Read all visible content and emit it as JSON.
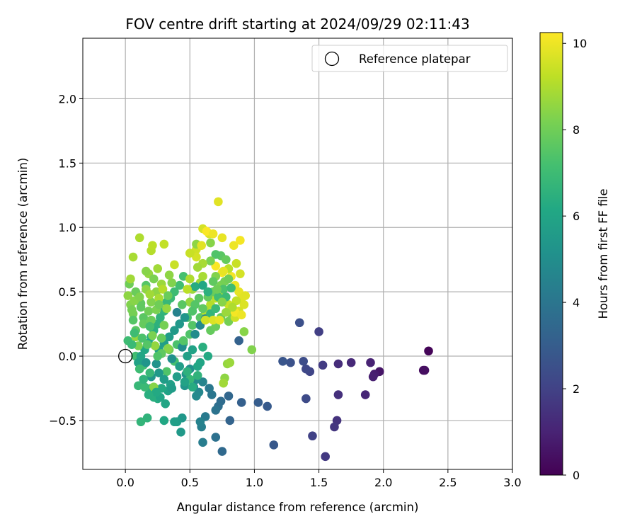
{
  "chart_data": {
    "type": "scatter",
    "title": "FOV centre drift starting at 2024/09/29 02:11:43",
    "xlabel": "Angular distance from reference (arcmin)",
    "ylabel": "Rotation from reference (arcmin)",
    "xlim": [
      -0.33,
      3.0
    ],
    "ylim": [
      -0.88,
      2.47
    ],
    "xticks": [
      0.0,
      0.5,
      1.0,
      1.5,
      2.0,
      2.5,
      3.0
    ],
    "xtick_labels": [
      "0.0",
      "0.5",
      "1.0",
      "1.5",
      "2.0",
      "2.5",
      "3.0"
    ],
    "yticks": [
      -0.5,
      0.0,
      0.5,
      1.0,
      1.5,
      2.0
    ],
    "ytick_labels": [
      "−0.5",
      "0.0",
      "0.5",
      "1.0",
      "1.5",
      "2.0"
    ],
    "grid": true,
    "legend": {
      "position": "upper right",
      "entries": [
        "Reference platepar"
      ]
    },
    "reference_point": {
      "label": "Reference platepar",
      "x": 0.0,
      "y": 0.0
    },
    "colorbar": {
      "label": "Hours from first FF file",
      "range": [
        0,
        10.25
      ],
      "ticks": [
        0,
        2,
        4,
        6,
        8,
        10
      ],
      "tick_labels": [
        "0",
        "2",
        "4",
        "6",
        "8",
        "10"
      ],
      "colormap": "viridis"
    },
    "points": [
      [
        2.35,
        0.04,
        0.1
      ],
      [
        2.31,
        -0.11,
        0.3
      ],
      [
        2.32,
        -0.11,
        0.4
      ],
      [
        1.97,
        -0.12,
        0.6
      ],
      [
        1.93,
        -0.14,
        0.8
      ],
      [
        1.92,
        -0.16,
        0.9
      ],
      [
        1.9,
        -0.05,
        1.0
      ],
      [
        1.86,
        -0.3,
        1.1
      ],
      [
        1.75,
        -0.05,
        1.2
      ],
      [
        1.65,
        -0.06,
        1.3
      ],
      [
        1.65,
        -0.3,
        1.4
      ],
      [
        1.64,
        -0.5,
        1.5
      ],
      [
        1.62,
        -0.55,
        1.6
      ],
      [
        1.55,
        -0.78,
        1.7
      ],
      [
        1.53,
        -0.07,
        1.8
      ],
      [
        1.5,
        0.19,
        1.9
      ],
      [
        1.45,
        -0.62,
        2.0
      ],
      [
        1.43,
        -0.12,
        2.1
      ],
      [
        1.4,
        -0.1,
        2.2
      ],
      [
        1.4,
        -0.33,
        2.3
      ],
      [
        1.38,
        -0.04,
        2.4
      ],
      [
        1.35,
        0.26,
        2.5
      ],
      [
        1.28,
        -0.05,
        2.6
      ],
      [
        1.22,
        -0.04,
        2.7
      ],
      [
        1.15,
        -0.69,
        2.8
      ],
      [
        1.1,
        -0.39,
        2.9
      ],
      [
        1.03,
        -0.36,
        3.0
      ],
      [
        0.9,
        -0.36,
        3.1
      ],
      [
        0.88,
        0.12,
        3.2
      ],
      [
        0.81,
        -0.5,
        3.3
      ],
      [
        0.8,
        -0.31,
        3.4
      ],
      [
        0.75,
        -0.74,
        3.5
      ],
      [
        0.74,
        -0.35,
        3.6
      ],
      [
        0.72,
        -0.39,
        3.7
      ],
      [
        0.7,
        -0.63,
        3.8
      ],
      [
        0.7,
        -0.42,
        3.9
      ],
      [
        0.67,
        -0.3,
        4.0
      ],
      [
        0.65,
        -0.25,
        4.1
      ],
      [
        0.62,
        -0.47,
        4.2
      ],
      [
        0.6,
        -0.67,
        4.3
      ],
      [
        0.59,
        -0.55,
        4.4
      ],
      [
        0.58,
        -0.51,
        4.5
      ],
      [
        0.6,
        -0.2,
        4.6
      ],
      [
        0.57,
        -0.28,
        4.7
      ],
      [
        0.55,
        -0.31,
        4.8
      ],
      [
        0.55,
        -0.18,
        4.9
      ],
      [
        0.53,
        -0.24,
        5.0
      ],
      [
        0.5,
        -0.1,
        5.1
      ],
      [
        0.47,
        -0.14,
        5.2
      ],
      [
        0.46,
        -0.23,
        5.3
      ],
      [
        0.44,
        -0.48,
        5.4
      ],
      [
        0.43,
        -0.59,
        5.5
      ],
      [
        0.4,
        -0.51,
        5.6
      ],
      [
        0.38,
        -0.51,
        5.7
      ],
      [
        0.35,
        -0.22,
        5.8
      ],
      [
        0.33,
        -0.27,
        5.9
      ],
      [
        0.31,
        -0.37,
        6.0
      ],
      [
        0.3,
        -0.5,
        6.1
      ],
      [
        0.28,
        -0.25,
        6.2
      ],
      [
        0.25,
        -0.33,
        6.3
      ],
      [
        0.22,
        -0.32,
        6.4
      ],
      [
        0.2,
        -0.25,
        6.5
      ],
      [
        0.17,
        -0.48,
        6.6
      ],
      [
        0.12,
        -0.51,
        6.7
      ],
      [
        0.1,
        -0.23,
        6.8
      ],
      [
        0.15,
        -0.24,
        6.9
      ],
      [
        0.02,
        0.12,
        7.0
      ],
      [
        0.08,
        0.0,
        7.1
      ],
      [
        0.14,
        -0.07,
        7.2
      ],
      [
        0.4,
        0.09,
        7.3
      ],
      [
        0.5,
        0.17,
        7.4
      ],
      [
        0.52,
        0.24,
        7.5
      ],
      [
        0.58,
        0.3,
        7.6
      ],
      [
        0.62,
        0.33,
        7.7
      ],
      [
        0.66,
        0.2,
        7.8
      ],
      [
        0.7,
        0.23,
        7.9
      ],
      [
        0.74,
        0.3,
        8.0
      ],
      [
        0.8,
        0.27,
        8.1
      ],
      [
        0.82,
        0.33,
        8.2
      ],
      [
        0.98,
        0.05,
        8.3
      ],
      [
        0.92,
        0.19,
        8.4
      ],
      [
        0.77,
        -0.17,
        8.5
      ],
      [
        0.79,
        -0.06,
        8.6
      ],
      [
        0.81,
        -0.05,
        8.7
      ],
      [
        0.76,
        -0.21,
        8.8
      ],
      [
        0.06,
        0.77,
        8.9
      ],
      [
        0.11,
        0.92,
        9.0
      ],
      [
        0.2,
        0.82,
        9.1
      ],
      [
        0.21,
        0.86,
        9.2
      ],
      [
        0.3,
        0.87,
        9.3
      ],
      [
        0.38,
        0.71,
        9.4
      ],
      [
        0.55,
        0.83,
        9.5
      ],
      [
        0.6,
        0.99,
        9.6
      ],
      [
        0.65,
        0.95,
        9.7
      ],
      [
        0.72,
        1.2,
        9.8
      ],
      [
        0.75,
        0.92,
        9.9
      ],
      [
        0.84,
        0.86,
        10.0
      ],
      [
        0.89,
        0.9,
        10.1
      ],
      [
        0.7,
        0.7,
        10.2
      ],
      [
        0.75,
        0.65,
        10.2
      ],
      [
        0.82,
        0.62,
        10.1
      ],
      [
        0.85,
        0.55,
        10.0
      ],
      [
        0.88,
        0.5,
        9.9
      ],
      [
        0.9,
        0.45,
        9.8
      ],
      [
        0.92,
        0.4,
        9.7
      ],
      [
        0.88,
        0.35,
        9.6
      ],
      [
        0.85,
        0.3,
        9.5
      ],
      [
        0.8,
        0.4,
        9.4
      ],
      [
        0.75,
        0.47,
        9.3
      ],
      [
        0.7,
        0.45,
        9.2
      ],
      [
        0.66,
        0.4,
        9.1
      ],
      [
        0.62,
        0.35,
        9.0
      ],
      [
        0.6,
        0.62,
        8.9
      ],
      [
        0.58,
        0.57,
        8.8
      ],
      [
        0.52,
        0.52,
        8.7
      ],
      [
        0.5,
        0.42,
        8.6
      ],
      [
        0.55,
        0.87,
        8.5
      ],
      [
        0.66,
        0.88,
        8.4
      ],
      [
        0.7,
        0.62,
        8.3
      ],
      [
        0.74,
        0.55,
        8.2
      ],
      [
        0.77,
        0.58,
        8.1
      ],
      [
        0.8,
        0.6,
        8.0
      ],
      [
        0.68,
        0.5,
        7.9
      ],
      [
        0.64,
        0.46,
        7.8
      ],
      [
        0.6,
        0.37,
        7.7
      ],
      [
        0.57,
        0.45,
        7.6
      ],
      [
        0.54,
        0.4,
        7.5
      ],
      [
        0.52,
        0.35,
        7.4
      ],
      [
        0.48,
        0.3,
        7.3
      ],
      [
        0.45,
        0.62,
        7.2
      ],
      [
        0.42,
        0.55,
        7.1
      ],
      [
        0.38,
        0.5,
        7.0
      ],
      [
        0.35,
        0.45,
        6.9
      ],
      [
        0.32,
        0.42,
        6.8
      ],
      [
        0.3,
        0.35,
        6.7
      ],
      [
        0.27,
        0.3,
        6.6
      ],
      [
        0.25,
        0.25,
        6.5
      ],
      [
        0.22,
        0.2,
        6.4
      ],
      [
        0.2,
        0.15,
        6.3
      ],
      [
        0.18,
        0.1,
        6.2
      ],
      [
        0.15,
        0.05,
        6.1
      ],
      [
        0.12,
        0.0,
        6.0
      ],
      [
        0.1,
        -0.05,
        5.9
      ],
      [
        0.26,
        0.05,
        5.8
      ],
      [
        0.3,
        0.1,
        5.7
      ],
      [
        0.34,
        0.15,
        5.6
      ],
      [
        0.38,
        0.2,
        5.5
      ],
      [
        0.42,
        0.25,
        5.4
      ],
      [
        0.46,
        0.3,
        5.3
      ],
      [
        0.02,
        0.47,
        8.5
      ],
      [
        0.04,
        0.4,
        8.3
      ],
      [
        0.06,
        0.33,
        8.1
      ],
      [
        0.03,
        0.56,
        8.0
      ],
      [
        0.08,
        0.5,
        7.9
      ],
      [
        0.1,
        0.45,
        7.8
      ],
      [
        0.12,
        0.38,
        7.7
      ],
      [
        0.14,
        0.3,
        7.6
      ],
      [
        0.16,
        0.55,
        7.5
      ],
      [
        0.18,
        0.64,
        8.6
      ],
      [
        0.16,
        0.66,
        8.4
      ],
      [
        0.22,
        0.6,
        8.2
      ],
      [
        0.25,
        0.68,
        8.8
      ],
      [
        0.28,
        0.56,
        8.7
      ],
      [
        0.24,
        0.5,
        8.5
      ],
      [
        0.2,
        0.42,
        8.3
      ],
      [
        0.18,
        0.35,
        8.0
      ],
      [
        0.14,
        0.25,
        7.8
      ],
      [
        0.08,
        0.2,
        7.6
      ],
      [
        0.06,
        0.28,
        7.5
      ],
      [
        0.04,
        0.6,
        8.8
      ],
      [
        0.08,
        0.15,
        8.6
      ],
      [
        0.1,
        0.08,
        8.2
      ],
      [
        0.22,
        -0.24,
        8.4
      ],
      [
        0.34,
        0.05,
        8.0
      ],
      [
        0.32,
        -0.12,
        7.4
      ],
      [
        0.38,
        -0.04,
        7.2
      ],
      [
        0.45,
        0.1,
        7.0
      ],
      [
        0.5,
        -0.18,
        6.8
      ],
      [
        0.56,
        -0.15,
        6.6
      ],
      [
        0.6,
        0.07,
        6.4
      ],
      [
        0.64,
        0.0,
        6.2
      ],
      [
        0.58,
        -0.05,
        6.0
      ],
      [
        0.52,
        0.05,
        5.9
      ],
      [
        0.48,
        0.0,
        5.8
      ],
      [
        0.42,
        -0.08,
        5.7
      ],
      [
        0.3,
        -0.18,
        5.6
      ],
      [
        0.26,
        -0.13,
        5.5
      ],
      [
        0.2,
        -0.16,
        5.4
      ],
      [
        0.16,
        -0.05,
        5.3
      ],
      [
        0.24,
        -0.06,
        5.2
      ],
      [
        0.36,
        -0.02,
        5.1
      ],
      [
        0.44,
        0.07,
        5.0
      ],
      [
        0.54,
        0.17,
        4.9
      ],
      [
        0.58,
        0.24,
        4.8
      ],
      [
        0.62,
        0.29,
        4.7
      ],
      [
        0.4,
        0.34,
        4.5
      ],
      [
        0.54,
        0.54,
        6.3
      ],
      [
        0.6,
        0.55,
        6.1
      ],
      [
        0.64,
        0.5,
        6.5
      ],
      [
        0.66,
        0.33,
        6.7
      ],
      [
        0.7,
        0.37,
        6.9
      ],
      [
        0.72,
        0.46,
        7.1
      ],
      [
        0.76,
        0.52,
        7.3
      ],
      [
        0.78,
        0.46,
        6.9
      ],
      [
        0.82,
        0.53,
        7.0
      ],
      [
        0.74,
        0.78,
        7.6
      ],
      [
        0.7,
        0.79,
        7.4
      ],
      [
        0.78,
        0.75,
        7.8
      ],
      [
        0.66,
        0.74,
        8.2
      ],
      [
        0.6,
        0.72,
        8.9
      ],
      [
        0.62,
        0.28,
        9.5
      ],
      [
        0.68,
        0.28,
        9.7
      ],
      [
        0.73,
        0.28,
        9.9
      ],
      [
        0.85,
        0.34,
        10.1
      ],
      [
        0.9,
        0.32,
        10.0
      ],
      [
        0.93,
        0.47,
        9.8
      ],
      [
        0.89,
        0.64,
        9.6
      ],
      [
        0.86,
        0.72,
        9.4
      ],
      [
        0.8,
        0.68,
        9.2
      ],
      [
        0.76,
        0.66,
        9.9
      ],
      [
        0.63,
        0.97,
        10.2
      ],
      [
        0.68,
        0.95,
        10.0
      ],
      [
        0.59,
        0.86,
        9.8
      ],
      [
        0.55,
        0.77,
        9.6
      ],
      [
        0.5,
        0.8,
        9.4
      ],
      [
        0.48,
        0.52,
        9.2
      ],
      [
        0.5,
        0.6,
        9.0
      ],
      [
        0.56,
        0.69,
        8.8
      ],
      [
        0.26,
        0.45,
        8.9
      ],
      [
        0.29,
        0.52,
        9.1
      ],
      [
        0.32,
        0.37,
        8.6
      ],
      [
        0.24,
        0.36,
        8.2
      ],
      [
        0.2,
        0.28,
        7.9
      ],
      [
        0.12,
        0.41,
        7.7
      ],
      [
        0.07,
        0.43,
        8.4
      ],
      [
        0.05,
        0.36,
        8.1
      ],
      [
        0.11,
        0.46,
        8.3
      ],
      [
        0.16,
        0.52,
        8.5
      ],
      [
        0.19,
        0.48,
        8.8
      ],
      [
        0.26,
        0.4,
        8.0
      ],
      [
        0.28,
        0.14,
        7.8
      ],
      [
        0.3,
        0.24,
        8.1
      ],
      [
        0.33,
        0.06,
        8.4
      ],
      [
        0.23,
        0.08,
        8.6
      ],
      [
        0.21,
        0.16,
        8.2
      ],
      [
        0.17,
        0.09,
        7.5
      ],
      [
        0.13,
        0.14,
        7.3
      ],
      [
        0.05,
        0.09,
        6.9
      ],
      [
        0.07,
        0.18,
        7.0
      ],
      [
        0.48,
        -0.12,
        6.5
      ],
      [
        0.52,
        -0.24,
        6.3
      ],
      [
        0.56,
        -0.08,
        6.0
      ],
      [
        0.46,
        -0.2,
        5.9
      ],
      [
        0.4,
        -0.16,
        5.7
      ],
      [
        0.36,
        -0.25,
        5.6
      ],
      [
        0.27,
        -0.32,
        6.0
      ],
      [
        0.24,
        -0.28,
        6.2
      ],
      [
        0.18,
        -0.3,
        6.4
      ],
      [
        0.14,
        -0.18,
        6.6
      ],
      [
        0.19,
        -0.13,
        6.8
      ],
      [
        0.11,
        -0.1,
        7.0
      ],
      [
        0.19,
        0.23,
        7.2
      ],
      [
        0.44,
        0.4,
        7.6
      ],
      [
        0.36,
        0.57,
        8.3
      ],
      [
        0.34,
        0.63,
        8.5
      ],
      [
        0.33,
        0.47,
        7.9
      ],
      [
        0.28,
        0.02,
        7.7
      ],
      [
        0.25,
        0.0,
        7.4
      ],
      [
        0.45,
        0.12,
        7.5
      ],
      [
        0.86,
        0.43,
        9.3
      ],
      [
        0.83,
        0.38,
        9.0
      ],
      [
        0.78,
        0.34,
        8.7
      ],
      [
        0.75,
        0.42,
        8.4
      ],
      [
        0.71,
        0.52,
        8.0
      ],
      [
        0.68,
        0.58,
        7.7
      ]
    ]
  }
}
